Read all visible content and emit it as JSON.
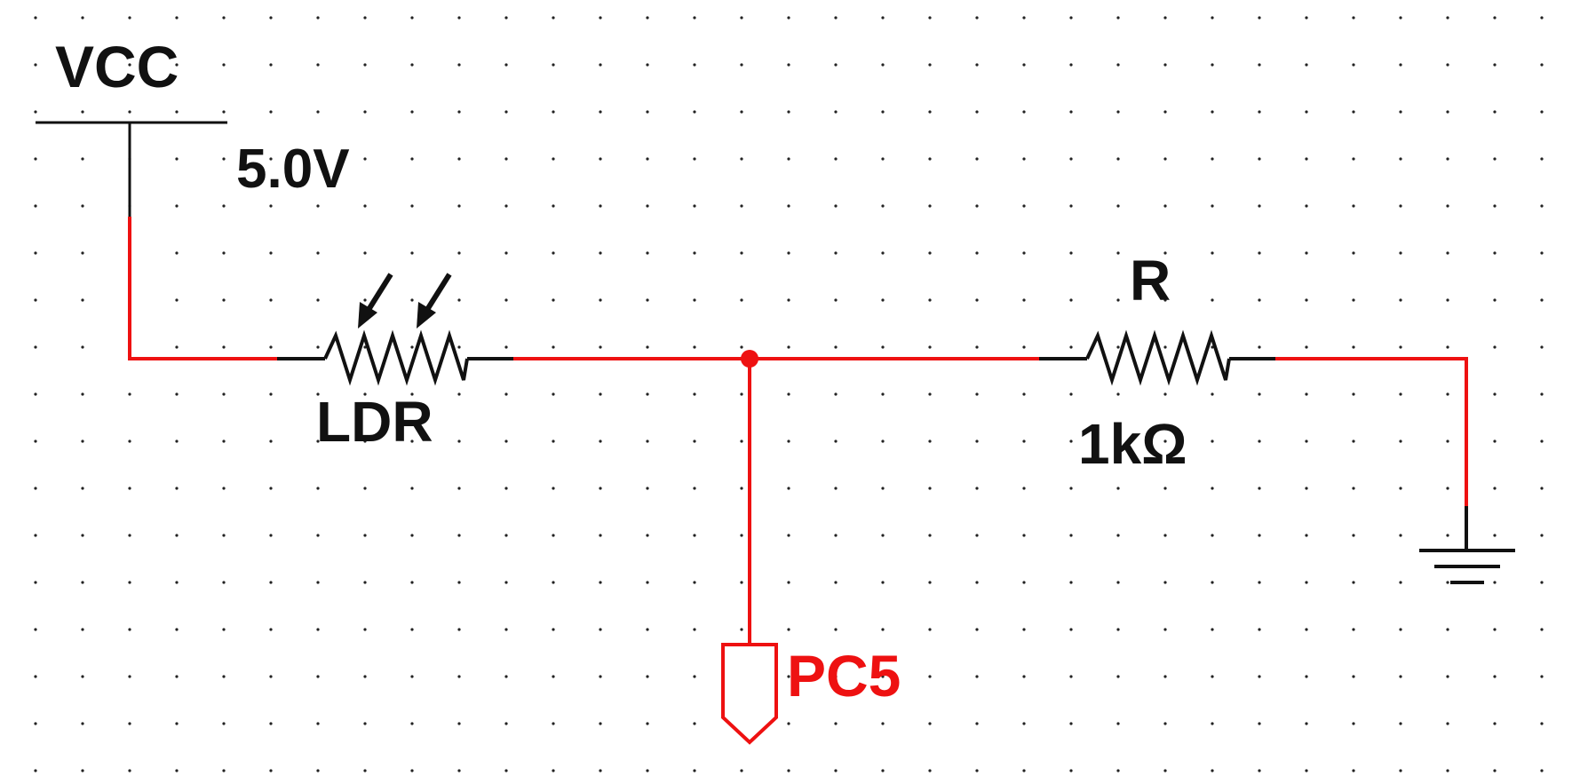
{
  "power": {
    "name": "VCC",
    "voltage": "5.0V"
  },
  "ldr": {
    "name": "LDR"
  },
  "resistor": {
    "name": "R",
    "value": "1kΩ"
  },
  "connector": {
    "name": "PC5"
  },
  "colors": {
    "wire_active": "#ee1111",
    "wire_pin": "#111111",
    "grid_dot": "#222222",
    "background": "#ffffff"
  }
}
